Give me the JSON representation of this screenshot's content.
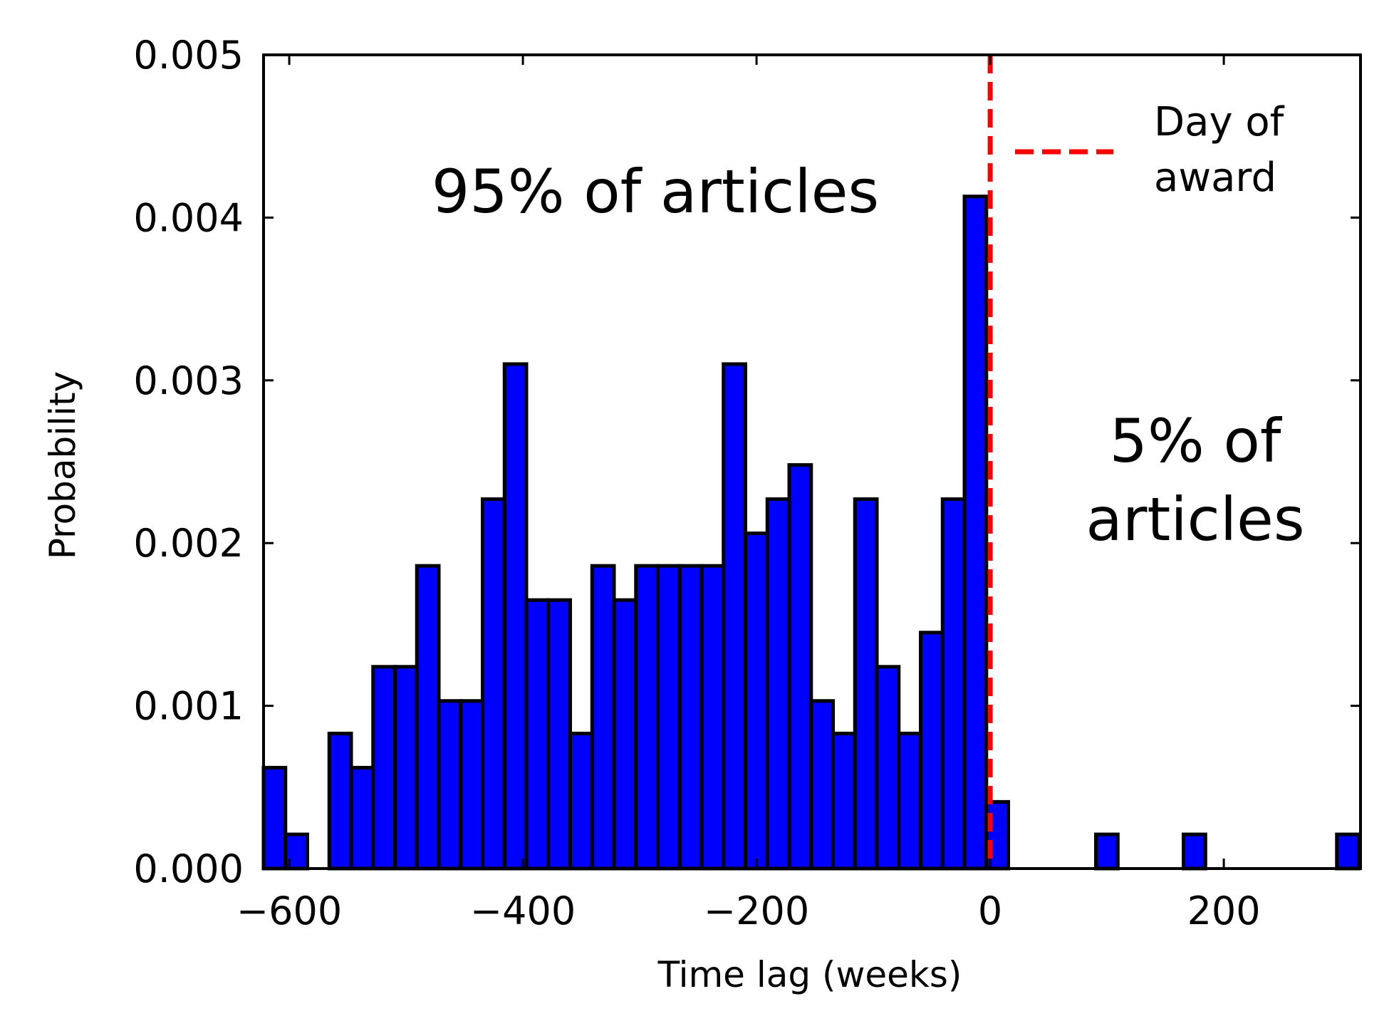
{
  "chart_data": {
    "type": "bar",
    "xlabel": "Time lag (weeks)",
    "ylabel": "Probability",
    "xlim": [
      -622,
      317
    ],
    "ylim": [
      0,
      0.005
    ],
    "grid": false,
    "bar_color": "#0000ff",
    "edge_color": "#000000",
    "bin_width": 18.75,
    "bins": [
      {
        "start": -622.0,
        "value": 0.00062
      },
      {
        "start": -603.25,
        "value": 0.00021
      },
      {
        "start": -584.5,
        "value": 0
      },
      {
        "start": -565.75,
        "value": 0.00083
      },
      {
        "start": -547.0,
        "value": 0.00062
      },
      {
        "start": -528.25,
        "value": 0.00124
      },
      {
        "start": -509.5,
        "value": 0.00124
      },
      {
        "start": -490.75,
        "value": 0.00186
      },
      {
        "start": -472.0,
        "value": 0.00103
      },
      {
        "start": -453.25,
        "value": 0.00103
      },
      {
        "start": -434.5,
        "value": 0.00227
      },
      {
        "start": -415.75,
        "value": 0.0031
      },
      {
        "start": -397.0,
        "value": 0.00165
      },
      {
        "start": -378.25,
        "value": 0.00165
      },
      {
        "start": -359.5,
        "value": 0.00083
      },
      {
        "start": -340.75,
        "value": 0.00186
      },
      {
        "start": -322.0,
        "value": 0.00165
      },
      {
        "start": -303.25,
        "value": 0.00186
      },
      {
        "start": -284.5,
        "value": 0.00186
      },
      {
        "start": -265.75,
        "value": 0.00186
      },
      {
        "start": -247.0,
        "value": 0.00186
      },
      {
        "start": -228.25,
        "value": 0.0031
      },
      {
        "start": -209.5,
        "value": 0.00206
      },
      {
        "start": -190.75,
        "value": 0.00227
      },
      {
        "start": -172.0,
        "value": 0.00248
      },
      {
        "start": -153.25,
        "value": 0.00103
      },
      {
        "start": -134.5,
        "value": 0.00083
      },
      {
        "start": -115.75,
        "value": 0.00227
      },
      {
        "start": -97.0,
        "value": 0.00124
      },
      {
        "start": -78.25,
        "value": 0.00083
      },
      {
        "start": -59.5,
        "value": 0.00145
      },
      {
        "start": -40.75,
        "value": 0.00227
      },
      {
        "start": -22.0,
        "value": 0.00413
      },
      {
        "start": -3.25,
        "value": 0.00041
      },
      {
        "start": 15.5,
        "value": 0
      },
      {
        "start": 34.25,
        "value": 0
      },
      {
        "start": 53.0,
        "value": 0
      },
      {
        "start": 71.75,
        "value": 0
      },
      {
        "start": 90.5,
        "value": 0.00021
      },
      {
        "start": 109.25,
        "value": 0
      },
      {
        "start": 128.0,
        "value": 0
      },
      {
        "start": 146.75,
        "value": 0
      },
      {
        "start": 165.5,
        "value": 0.00021
      },
      {
        "start": 184.25,
        "value": 0
      },
      {
        "start": 203.0,
        "value": 0
      },
      {
        "start": 221.75,
        "value": 0
      },
      {
        "start": 240.5,
        "value": 0
      },
      {
        "start": 259.25,
        "value": 0
      },
      {
        "start": 278.0,
        "value": 0
      },
      {
        "start": 296.75,
        "value": 0.00021
      }
    ],
    "x_ticks": [
      {
        "value": -600,
        "label": "−600"
      },
      {
        "value": -400,
        "label": "−400"
      },
      {
        "value": -200,
        "label": "−200"
      },
      {
        "value": 0,
        "label": "0"
      },
      {
        "value": 200,
        "label": "200"
      }
    ],
    "y_ticks": [
      {
        "value": 0,
        "label": "0.000"
      },
      {
        "value": 0.001,
        "label": "0.001"
      },
      {
        "value": 0.002,
        "label": "0.002"
      },
      {
        "value": 0.003,
        "label": "0.003"
      },
      {
        "value": 0.004,
        "label": "0.004"
      },
      {
        "value": 0.005,
        "label": "0.005"
      }
    ],
    "reference_line": {
      "x": 0,
      "color": "#ff0000",
      "style": "dashed"
    },
    "legend": {
      "placement": "top-right",
      "entries": [
        {
          "line1": "Day of",
          "line2": "award",
          "color": "#ff0000",
          "style": "dashed"
        }
      ]
    },
    "annotations": {
      "left": "95% of articles",
      "right_line1": "5% of",
      "right_line2": "articles"
    }
  }
}
